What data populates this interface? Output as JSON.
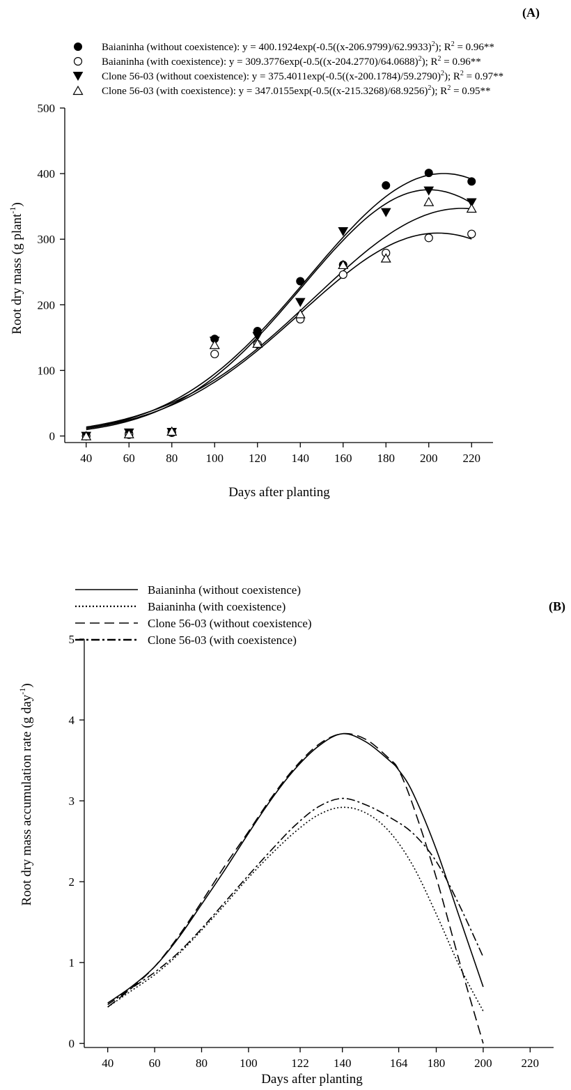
{
  "chart_data": [
    {
      "type": "scatter",
      "panel_label": "(A)",
      "xlabel": "Days after planting",
      "ylabel": "Root dry mass (g plant",
      "ylabel_sup": "-1",
      "ylabel_close": ")",
      "xlim": [
        30,
        230
      ],
      "ylim": [
        -10,
        500
      ],
      "xticks": [
        40,
        60,
        80,
        100,
        120,
        140,
        160,
        180,
        200,
        220
      ],
      "yticks": [
        0,
        100,
        200,
        300,
        400,
        500
      ],
      "grid": false,
      "legend_position": "top",
      "fit_line": true,
      "series": [
        {
          "name": "Baianinha (without coexistence)",
          "marker": "filled-circle",
          "equation": "y = 400.1924exp(-0.5((x-206.9799)/62.9933)",
          "equation_tail": "); R",
          "r2_value": " = 0.96**",
          "a": 400.1924,
          "x0": 206.9799,
          "b": 62.9933,
          "x": [
            40,
            60,
            80,
            100,
            120,
            140,
            160,
            180,
            200,
            220
          ],
          "y": [
            0,
            4,
            6,
            148,
            160,
            236,
            261,
            382,
            401,
            388
          ]
        },
        {
          "name": "Baianinha (with coexistence)",
          "marker": "open-circle",
          "equation": "y = 309.3776exp(-0.5((x-204.2770)/64.0688)",
          "equation_tail": "); R",
          "r2_value": " = 0.96**",
          "a": 309.3776,
          "x0": 204.277,
          "b": 64.0688,
          "x": [
            40,
            60,
            80,
            100,
            120,
            140,
            160,
            180,
            200,
            220
          ],
          "y": [
            0,
            2,
            5,
            125,
            140,
            178,
            246,
            279,
            302,
            308
          ]
        },
        {
          "name": "Clone 56-03 (without coexistence)",
          "marker": "filled-triangle-down",
          "equation": "y = 375.4011exp(-0.5((x-200.1784)/59.2790)",
          "equation_tail": "); R",
          "r2_value": " = 0.97**",
          "a": 375.4011,
          "x0": 200.1784,
          "b": 59.279,
          "x": [
            40,
            60,
            80,
            100,
            120,
            140,
            160,
            180,
            200,
            220
          ],
          "y": [
            0,
            5,
            6,
            145,
            152,
            204,
            312,
            341,
            374,
            356
          ]
        },
        {
          "name": "Clone 56-03 (with coexistence)",
          "marker": "open-triangle-up",
          "equation": "y = 347.0155exp(-0.5((x-215.3268)/68.9256)",
          "equation_tail": "); R",
          "r2_value": " = 0.95**",
          "a": 347.0155,
          "x0": 215.3268,
          "b": 68.9256,
          "x": [
            40,
            60,
            80,
            100,
            120,
            140,
            160,
            180,
            200,
            220
          ],
          "y": [
            0,
            3,
            7,
            139,
            141,
            186,
            261,
            271,
            357,
            347
          ]
        }
      ]
    },
    {
      "type": "line",
      "panel_label": "(B)",
      "xlabel": "Days after planting",
      "ylabel": "Root dry mass accumulation rate (g day",
      "ylabel_sup": "-1",
      "ylabel_close": ")",
      "xlim": [
        30,
        230
      ],
      "ylim": [
        -0.05,
        5
      ],
      "xticks": [
        40,
        60,
        80,
        100,
        122,
        140,
        164,
        180,
        200,
        220
      ],
      "yticks": [
        0,
        1,
        2,
        3,
        4,
        5
      ],
      "grid": false,
      "legend_position": "top-left",
      "series": [
        {
          "name": "Baianinha (without coexistence)",
          "style": "solid",
          "x": [
            40,
            50,
            60,
            70,
            80,
            90,
            100,
            110,
            120,
            130,
            140,
            150,
            160,
            164,
            170,
            180,
            190,
            200
          ],
          "y": [
            0.5,
            0.7,
            0.95,
            1.3,
            1.72,
            2.15,
            2.6,
            3.03,
            3.4,
            3.68,
            3.83,
            3.73,
            3.5,
            3.38,
            3.1,
            2.4,
            1.55,
            0.7
          ]
        },
        {
          "name": "Baianinha (with coexistence)",
          "style": "dotted",
          "x": [
            40,
            50,
            60,
            70,
            80,
            90,
            100,
            110,
            120,
            130,
            140,
            150,
            160,
            170,
            180,
            190,
            200
          ],
          "y": [
            0.45,
            0.65,
            0.85,
            1.1,
            1.4,
            1.72,
            2.05,
            2.35,
            2.62,
            2.83,
            2.92,
            2.85,
            2.62,
            2.2,
            1.6,
            0.95,
            0.4
          ]
        },
        {
          "name": "Clone 56-03 (without coexistence)",
          "style": "dashed",
          "x": [
            40,
            50,
            60,
            70,
            80,
            90,
            100,
            110,
            120,
            130,
            140,
            150,
            160,
            164,
            170,
            180,
            190,
            200
          ],
          "y": [
            0.45,
            0.68,
            0.95,
            1.32,
            1.75,
            2.2,
            2.62,
            3.05,
            3.42,
            3.7,
            3.83,
            3.76,
            3.52,
            3.38,
            2.95,
            2.05,
            1.0,
            0.0
          ]
        },
        {
          "name": "Clone 56-03 (with coexistence)",
          "style": "dash-dot",
          "x": [
            40,
            50,
            60,
            70,
            80,
            90,
            100,
            110,
            120,
            130,
            140,
            150,
            160,
            170,
            180,
            190,
            200
          ],
          "y": [
            0.48,
            0.68,
            0.88,
            1.12,
            1.42,
            1.75,
            2.08,
            2.4,
            2.7,
            2.93,
            3.03,
            2.95,
            2.8,
            2.6,
            2.25,
            1.7,
            1.07
          ]
        }
      ]
    }
  ]
}
